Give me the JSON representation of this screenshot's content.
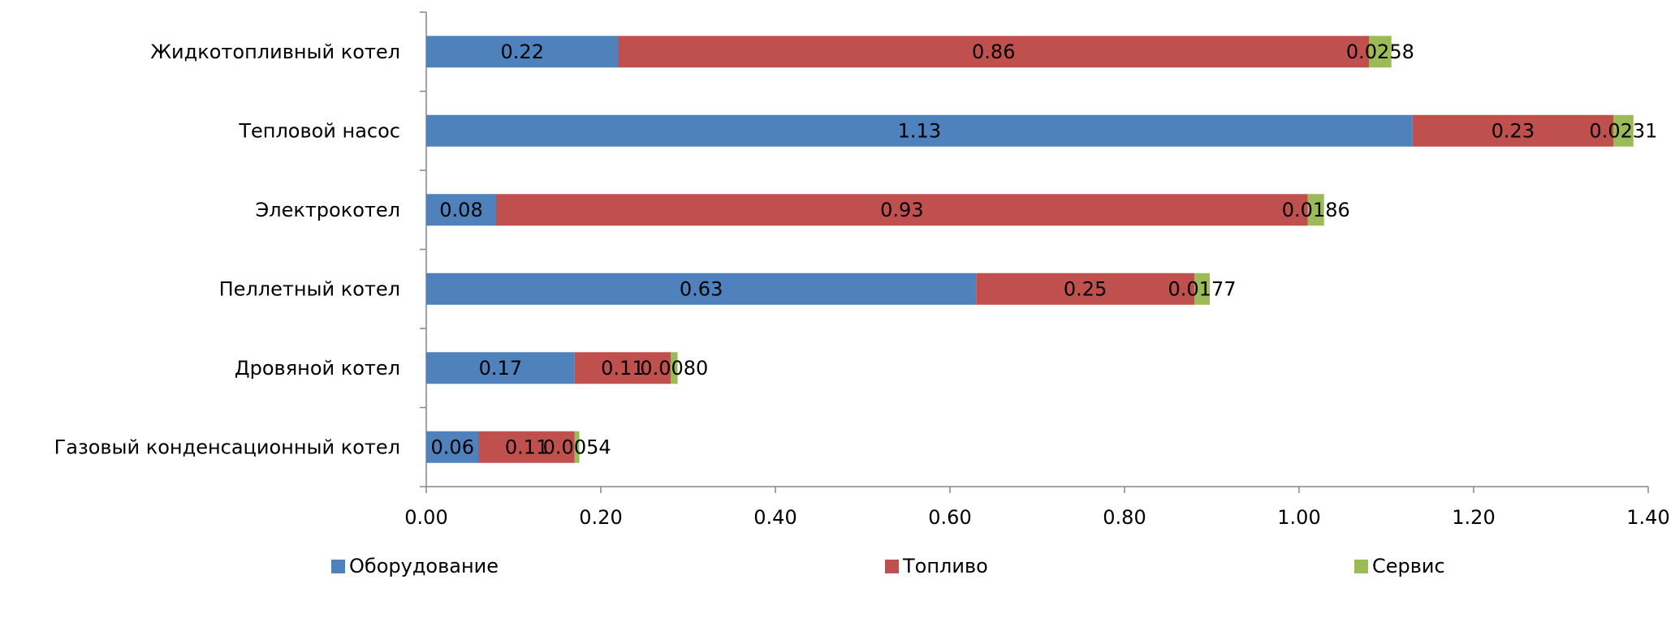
{
  "chart_data": {
    "type": "bar",
    "orientation": "horizontal",
    "stacked": true,
    "categories": [
      "Жидкотопливный котел",
      "Тепловой насос",
      "Электрокотел",
      "Пеллетный котел",
      "Дровяной котел",
      "Газовый конденсационный  котел"
    ],
    "series": [
      {
        "name": "Оборудование",
        "color": "#4F81BD",
        "values": [
          0.22,
          1.13,
          0.08,
          0.63,
          0.17,
          0.06
        ],
        "labels": [
          "0.22",
          "1.13",
          "0.08",
          "0.63",
          "0.17",
          "0.06"
        ]
      },
      {
        "name": "Топливо",
        "color": "#C0504D",
        "values": [
          0.86,
          0.23,
          0.93,
          0.25,
          0.11,
          0.11
        ],
        "labels": [
          "0.86",
          "0.23",
          "0.93",
          "0.25",
          "0.11",
          "0.11"
        ]
      },
      {
        "name": "Сервис",
        "color": "#9BBB59",
        "values": [
          0.0258,
          0.0231,
          0.0186,
          0.0177,
          0.008,
          0.0054
        ],
        "labels": [
          "0.0258",
          "0.0231",
          "0.0186",
          "0.0177",
          "0.0080",
          "0.0054"
        ]
      }
    ],
    "x_ticks": [
      "0.00",
      "0.20",
      "0.40",
      "0.60",
      "0.80",
      "1.00",
      "1.20",
      "1.40"
    ],
    "xlim": [
      0,
      1.4
    ],
    "legend_position": "bottom",
    "grid": false
  }
}
